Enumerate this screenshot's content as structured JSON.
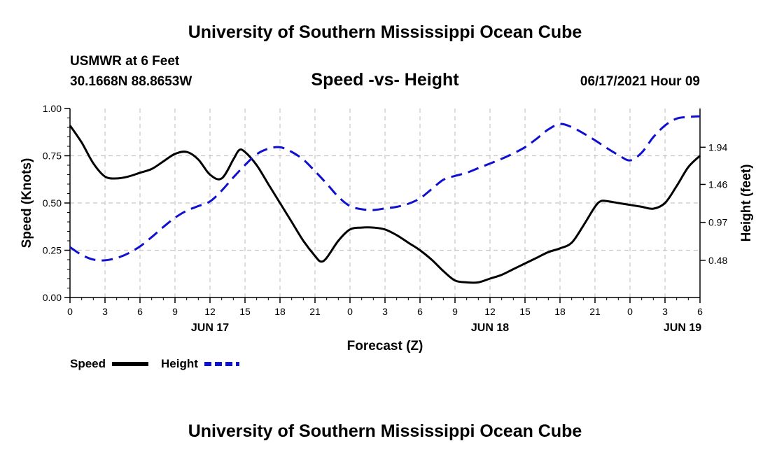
{
  "header": {
    "title": "University of Southern Mississippi Ocean Cube",
    "station": "USMWR at 6 Feet",
    "coords": "30.1668N  88.8653W",
    "chart_title": "Speed -vs- Height",
    "datetime": "06/17/2021 Hour 09"
  },
  "footer": {
    "title": "University of Southern Mississippi Ocean Cube"
  },
  "legend": {
    "speed": "Speed",
    "height": "Height"
  },
  "colors": {
    "speed": "#000000",
    "height": "#1010d0",
    "grid": "#c8c8c8"
  },
  "chart_data": {
    "type": "line",
    "title": "Speed -vs- Height",
    "xlabel": "Forecast (Z)",
    "ylabel_left": "Speed (Knots)",
    "ylabel_right": "Height (feet)",
    "x_range_hours": [
      0,
      54
    ],
    "x_ticks": [
      {
        "h": 0,
        "label": "0"
      },
      {
        "h": 3,
        "label": "3"
      },
      {
        "h": 6,
        "label": "6"
      },
      {
        "h": 9,
        "label": "9"
      },
      {
        "h": 12,
        "label": "12"
      },
      {
        "h": 15,
        "label": "15"
      },
      {
        "h": 18,
        "label": "18"
      },
      {
        "h": 21,
        "label": "21"
      },
      {
        "h": 24,
        "label": "0"
      },
      {
        "h": 27,
        "label": "3"
      },
      {
        "h": 30,
        "label": "6"
      },
      {
        "h": 33,
        "label": "9"
      },
      {
        "h": 36,
        "label": "12"
      },
      {
        "h": 39,
        "label": "15"
      },
      {
        "h": 42,
        "label": "18"
      },
      {
        "h": 45,
        "label": "21"
      },
      {
        "h": 48,
        "label": "0"
      },
      {
        "h": 51,
        "label": "3"
      },
      {
        "h": 54,
        "label": "6"
      }
    ],
    "day_labels": [
      {
        "h": 12,
        "label": "JUN 17"
      },
      {
        "h": 36,
        "label": "JUN 18"
      },
      {
        "h": 52.5,
        "label": "JUN 19"
      }
    ],
    "y_left": {
      "range": [
        0,
        1.0
      ],
      "ticks": [
        0,
        0.25,
        0.5,
        0.75,
        1.0
      ],
      "tick_labels": [
        "0.00",
        "0.25",
        "0.50",
        "0.75",
        "1.00"
      ]
    },
    "y_right": {
      "range": [
        0.0,
        2.44
      ],
      "ticks": [
        0.48,
        0.97,
        1.46,
        1.94
      ],
      "tick_labels": [
        "0.48",
        "0.97",
        "1.46",
        "1.94"
      ]
    },
    "series": [
      {
        "name": "Speed",
        "axis": "left",
        "style": "solid",
        "x": [
          0,
          1,
          2,
          3,
          4,
          5,
          6,
          7,
          8,
          9,
          10,
          11,
          12,
          13,
          14,
          14.5,
          15,
          16,
          17,
          18,
          19,
          20,
          21,
          21.5,
          22,
          23,
          24,
          25,
          26,
          27,
          28,
          29,
          30,
          31,
          32,
          33,
          34,
          35,
          36,
          37,
          38,
          39,
          40,
          41,
          42,
          43,
          44,
          45,
          45.5,
          46,
          47,
          48,
          49,
          50,
          51,
          52,
          53,
          54
        ],
        "values": [
          0.91,
          0.82,
          0.71,
          0.64,
          0.63,
          0.64,
          0.66,
          0.68,
          0.72,
          0.76,
          0.77,
          0.73,
          0.65,
          0.63,
          0.73,
          0.78,
          0.77,
          0.7,
          0.6,
          0.5,
          0.4,
          0.3,
          0.22,
          0.19,
          0.21,
          0.3,
          0.36,
          0.37,
          0.37,
          0.36,
          0.33,
          0.29,
          0.25,
          0.2,
          0.14,
          0.09,
          0.08,
          0.08,
          0.1,
          0.12,
          0.15,
          0.18,
          0.21,
          0.24,
          0.26,
          0.29,
          0.38,
          0.48,
          0.51,
          0.51,
          0.5,
          0.49,
          0.48,
          0.47,
          0.5,
          0.59,
          0.69,
          0.75
        ]
      },
      {
        "name": "Height",
        "axis": "right",
        "style": "dashed",
        "x": [
          0,
          1,
          2,
          3,
          4,
          5,
          6,
          7,
          8,
          9,
          10,
          11,
          12,
          13,
          14,
          15,
          16,
          17,
          18,
          19,
          20,
          21,
          22,
          23,
          24,
          25,
          26,
          27,
          28,
          29,
          30,
          31,
          32,
          33,
          34,
          35,
          36,
          37,
          38,
          39,
          40,
          41,
          42,
          43,
          44,
          45,
          46,
          47,
          48,
          49,
          50,
          51,
          52,
          53,
          54
        ],
        "values": [
          0.65,
          0.55,
          0.49,
          0.48,
          0.51,
          0.57,
          0.66,
          0.78,
          0.91,
          1.03,
          1.12,
          1.18,
          1.24,
          1.38,
          1.55,
          1.71,
          1.85,
          1.92,
          1.94,
          1.88,
          1.78,
          1.63,
          1.47,
          1.3,
          1.18,
          1.14,
          1.13,
          1.15,
          1.17,
          1.21,
          1.28,
          1.4,
          1.52,
          1.57,
          1.61,
          1.67,
          1.73,
          1.79,
          1.86,
          1.94,
          2.05,
          2.17,
          2.24,
          2.2,
          2.12,
          2.03,
          1.93,
          1.84,
          1.77,
          1.87,
          2.07,
          2.22,
          2.31,
          2.33,
          2.34
        ]
      }
    ]
  }
}
